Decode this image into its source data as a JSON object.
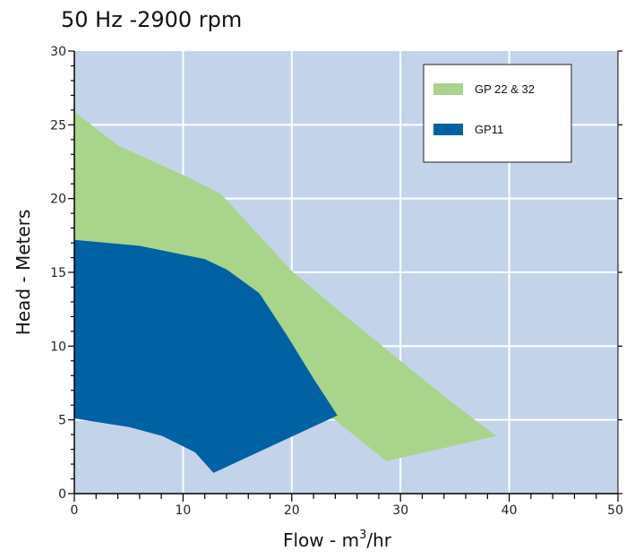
{
  "chart_data": {
    "type": "area",
    "title": "50 Hz -2900 rpm",
    "xlabel": "Flow - m",
    "xlabel_sup": "3",
    "xlabel_suffix": "/hr",
    "ylabel": "Head - Meters",
    "xlim": [
      0,
      50
    ],
    "ylim": [
      0,
      30
    ],
    "x_ticks": [
      0,
      10,
      20,
      30,
      40,
      50
    ],
    "y_ticks": [
      0,
      5,
      10,
      15,
      20,
      25,
      30
    ],
    "grid": true,
    "legend_position": "top-right",
    "background": "#c3d4ea",
    "series": [
      {
        "name": "GP 22 & 32",
        "color": "#a9d48c",
        "polygon": [
          [
            0,
            25.9
          ],
          [
            4,
            23.6
          ],
          [
            10,
            21.6
          ],
          [
            13.5,
            20.3
          ],
          [
            20,
            15.1
          ],
          [
            24,
            12.6
          ],
          [
            29,
            9.6
          ],
          [
            34,
            6.6
          ],
          [
            38.8,
            3.9
          ],
          [
            28.7,
            2.2
          ],
          [
            23.8,
            5.1
          ],
          [
            0,
            5.1
          ]
        ]
      },
      {
        "name": "GP11",
        "color": "#0061a3",
        "polygon": [
          [
            0,
            17.2
          ],
          [
            6,
            16.8
          ],
          [
            12,
            15.9
          ],
          [
            14,
            15.2
          ],
          [
            17,
            13.6
          ],
          [
            19.5,
            10.8
          ],
          [
            22,
            7.8
          ],
          [
            24.2,
            5.3
          ],
          [
            12.8,
            1.4
          ],
          [
            11.1,
            2.8
          ],
          [
            8.1,
            3.9
          ],
          [
            5.1,
            4.5
          ],
          [
            0,
            5.1
          ]
        ]
      }
    ]
  }
}
